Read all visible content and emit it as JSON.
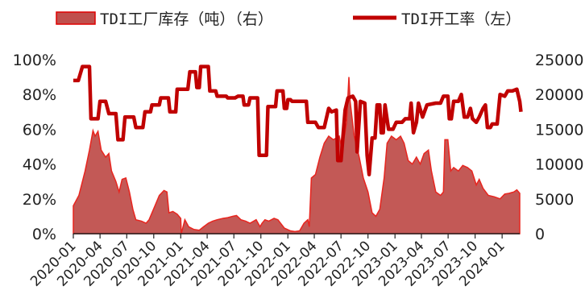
{
  "chart_data": {
    "type": "area+line",
    "legend": {
      "position": "top",
      "entries": [
        {
          "name": "TDI工厂库存（吨）（右）",
          "kind": "area",
          "color": "#c0504d",
          "stroke": "#e00000"
        },
        {
          "name": "TDI开工率（左）",
          "kind": "line",
          "color": "#c00000"
        }
      ]
    },
    "left_axis": {
      "ticks": [
        "100%",
        "80%",
        "60%",
        "40%",
        "20%",
        "0%"
      ],
      "range": [
        0,
        100
      ]
    },
    "right_axis": {
      "ticks": [
        "25000",
        "20000",
        "15000",
        "10000",
        "5000",
        "0"
      ],
      "range": [
        0,
        25000
      ]
    },
    "x_axis": {
      "range": [
        "2020-01",
        "2024-03"
      ],
      "ticks": [
        "2020-01",
        "2020-04",
        "2020-07",
        "2020-10",
        "2021-01",
        "2021-04",
        "2021-07",
        "2021-10",
        "2022-01",
        "2022-04",
        "2022-07",
        "2022-10",
        "2023-01",
        "2023-04",
        "2023-07",
        "2023-10",
        "2024-01"
      ]
    },
    "grid": false,
    "series": [
      {
        "name": "TDI工厂库存（吨）（右）",
        "axis": "right",
        "points": [
          [
            "2020-01-01",
            4000
          ],
          [
            "2020-01-20",
            5500
          ],
          [
            "2020-02-10",
            9000
          ],
          [
            "2020-02-25",
            12000
          ],
          [
            "2020-03-08",
            14800
          ],
          [
            "2020-03-15",
            14000
          ],
          [
            "2020-03-25",
            14700
          ],
          [
            "2020-04-05",
            12000
          ],
          [
            "2020-04-20",
            11000
          ],
          [
            "2020-05-01",
            11500
          ],
          [
            "2020-05-10",
            9000
          ],
          [
            "2020-05-25",
            7500
          ],
          [
            "2020-06-05",
            6000
          ],
          [
            "2020-06-15",
            7800
          ],
          [
            "2020-06-28",
            8000
          ],
          [
            "2020-07-10",
            6000
          ],
          [
            "2020-07-22",
            3500
          ],
          [
            "2020-08-01",
            2000
          ],
          [
            "2020-08-20",
            1800
          ],
          [
            "2020-09-05",
            1500
          ],
          [
            "2020-09-15",
            2000
          ],
          [
            "2020-10-05",
            4000
          ],
          [
            "2020-10-20",
            5500
          ],
          [
            "2020-11-05",
            6200
          ],
          [
            "2020-11-15",
            6000
          ],
          [
            "2020-11-22",
            3000
          ],
          [
            "2020-12-05",
            3200
          ],
          [
            "2020-12-20",
            2800
          ],
          [
            "2021-01-01",
            2200
          ],
          [
            "2021-01-03",
            0
          ],
          [
            "2021-01-15",
            2000
          ],
          [
            "2021-01-28",
            1000
          ],
          [
            "2021-02-15",
            600
          ],
          [
            "2021-03-05",
            500
          ],
          [
            "2021-03-20",
            1000
          ],
          [
            "2021-04-05",
            1500
          ],
          [
            "2021-04-20",
            1800
          ],
          [
            "2021-05-05",
            2000
          ],
          [
            "2021-05-25",
            2200
          ],
          [
            "2021-06-10",
            2300
          ],
          [
            "2021-06-28",
            2500
          ],
          [
            "2021-07-10",
            2600
          ],
          [
            "2021-07-25",
            2000
          ],
          [
            "2021-08-10",
            1800
          ],
          [
            "2021-08-25",
            1500
          ],
          [
            "2021-09-15",
            2000
          ],
          [
            "2021-09-28",
            1000
          ],
          [
            "2021-10-05",
            1500
          ],
          [
            "2021-10-15",
            2000
          ],
          [
            "2021-10-28",
            1800
          ],
          [
            "2021-11-15",
            2200
          ],
          [
            "2021-11-28",
            2000
          ],
          [
            "2021-12-20",
            800
          ],
          [
            "2022-01-10",
            400
          ],
          [
            "2022-01-25",
            300
          ],
          [
            "2022-02-10",
            400
          ],
          [
            "2022-02-25",
            1500
          ],
          [
            "2022-03-10",
            2000
          ],
          [
            "2022-03-15",
            1000
          ],
          [
            "2022-03-22",
            8000
          ],
          [
            "2022-04-05",
            8500
          ],
          [
            "2022-04-20",
            11000
          ],
          [
            "2022-05-05",
            13000
          ],
          [
            "2022-05-20",
            14000
          ],
          [
            "2022-06-05",
            13500
          ],
          [
            "2022-06-25",
            14000
          ],
          [
            "2022-07-05",
            12000
          ],
          [
            "2022-07-20",
            16000
          ],
          [
            "2022-07-28",
            22500
          ],
          [
            "2022-08-01",
            19000
          ],
          [
            "2022-08-15",
            14000
          ],
          [
            "2022-09-01",
            11000
          ],
          [
            "2022-09-15",
            8000
          ],
          [
            "2022-10-01",
            6000
          ],
          [
            "2022-10-15",
            3000
          ],
          [
            "2022-10-28",
            2500
          ],
          [
            "2022-11-10",
            3500
          ],
          [
            "2022-11-25",
            8000
          ],
          [
            "2022-12-05",
            13000
          ],
          [
            "2022-12-20",
            14000
          ],
          [
            "2023-01-05",
            13500
          ],
          [
            "2023-01-20",
            14000
          ],
          [
            "2023-02-01",
            13000
          ],
          [
            "2023-02-15",
            10500
          ],
          [
            "2023-03-01",
            10000
          ],
          [
            "2023-03-15",
            11000
          ],
          [
            "2023-03-28",
            10000
          ],
          [
            "2023-04-10",
            11500
          ],
          [
            "2023-04-25",
            12000
          ],
          [
            "2023-05-05",
            9000
          ],
          [
            "2023-05-20",
            6000
          ],
          [
            "2023-06-05",
            5500
          ],
          [
            "2023-06-15",
            6000
          ],
          [
            "2023-06-20",
            13500
          ],
          [
            "2023-06-30",
            13500
          ],
          [
            "2023-07-10",
            9000
          ],
          [
            "2023-07-20",
            9500
          ],
          [
            "2023-08-05",
            9000
          ],
          [
            "2023-08-20",
            9800
          ],
          [
            "2023-09-05",
            9500
          ],
          [
            "2023-09-20",
            9000
          ],
          [
            "2023-10-05",
            7000
          ],
          [
            "2023-10-15",
            7800
          ],
          [
            "2023-10-28",
            6500
          ],
          [
            "2023-11-15",
            5500
          ],
          [
            "2023-12-05",
            5300
          ],
          [
            "2023-12-25",
            5000
          ],
          [
            "2024-01-10",
            5700
          ],
          [
            "2024-01-25",
            5800
          ],
          [
            "2024-02-10",
            6000
          ],
          [
            "2024-02-20",
            6300
          ],
          [
            "2024-03-01",
            5800
          ]
        ]
      },
      {
        "name": "TDI开工率（左）",
        "axis": "left",
        "points": [
          [
            "2020-01-01",
            88
          ],
          [
            "2020-01-18",
            88
          ],
          [
            "2020-02-01",
            96
          ],
          [
            "2020-02-25",
            96
          ],
          [
            "2020-03-01",
            66
          ],
          [
            "2020-03-25",
            66
          ],
          [
            "2020-04-01",
            76
          ],
          [
            "2020-04-20",
            76
          ],
          [
            "2020-05-01",
            69
          ],
          [
            "2020-05-25",
            69
          ],
          [
            "2020-06-01",
            54
          ],
          [
            "2020-06-18",
            54
          ],
          [
            "2020-06-25",
            67
          ],
          [
            "2020-07-25",
            67
          ],
          [
            "2020-08-01",
            61
          ],
          [
            "2020-08-25",
            61
          ],
          [
            "2020-09-01",
            70
          ],
          [
            "2020-09-20",
            70
          ],
          [
            "2020-09-25",
            74
          ],
          [
            "2020-10-20",
            74
          ],
          [
            "2020-10-25",
            78
          ],
          [
            "2020-11-20",
            78
          ],
          [
            "2020-11-25",
            70
          ],
          [
            "2020-12-15",
            70
          ],
          [
            "2020-12-20",
            83
          ],
          [
            "2021-01-25",
            83
          ],
          [
            "2021-02-01",
            93
          ],
          [
            "2021-02-20",
            93
          ],
          [
            "2021-02-25",
            84
          ],
          [
            "2021-03-05",
            84
          ],
          [
            "2021-03-10",
            96
          ],
          [
            "2021-04-05",
            96
          ],
          [
            "2021-04-10",
            82
          ],
          [
            "2021-04-30",
            82
          ],
          [
            "2021-05-05",
            79
          ],
          [
            "2021-06-05",
            79
          ],
          [
            "2021-06-10",
            78
          ],
          [
            "2021-07-05",
            78
          ],
          [
            "2021-07-15",
            79
          ],
          [
            "2021-08-01",
            79
          ],
          [
            "2021-08-05",
            74
          ],
          [
            "2021-08-20",
            74
          ],
          [
            "2021-08-25",
            78
          ],
          [
            "2021-09-20",
            78
          ],
          [
            "2021-09-25",
            45
          ],
          [
            "2021-10-20",
            45
          ],
          [
            "2021-10-25",
            73
          ],
          [
            "2021-11-20",
            73
          ],
          [
            "2021-11-25",
            82
          ],
          [
            "2021-12-15",
            82
          ],
          [
            "2021-12-20",
            72
          ],
          [
            "2021-12-28",
            72
          ],
          [
            "2022-01-01",
            77
          ],
          [
            "2022-01-10",
            77
          ],
          [
            "2022-01-15",
            76
          ],
          [
            "2022-03-05",
            76
          ],
          [
            "2022-03-10",
            64
          ],
          [
            "2022-04-05",
            64
          ],
          [
            "2022-04-15",
            61
          ],
          [
            "2022-05-05",
            61
          ],
          [
            "2022-05-20",
            72
          ],
          [
            "2022-05-30",
            70
          ],
          [
            "2022-06-15",
            71
          ],
          [
            "2022-06-20",
            42
          ],
          [
            "2022-07-01",
            42
          ],
          [
            "2022-07-15",
            71
          ],
          [
            "2022-07-25",
            78
          ],
          [
            "2022-08-10",
            79
          ],
          [
            "2022-08-20",
            76
          ],
          [
            "2022-08-25",
            47
          ],
          [
            "2022-09-05",
            76
          ],
          [
            "2022-09-20",
            75
          ],
          [
            "2022-09-28",
            45
          ],
          [
            "2022-10-05",
            34
          ],
          [
            "2022-10-15",
            55
          ],
          [
            "2022-10-25",
            55
          ],
          [
            "2022-11-01",
            74
          ],
          [
            "2022-11-10",
            74
          ],
          [
            "2022-11-15",
            58
          ],
          [
            "2022-11-22",
            58
          ],
          [
            "2022-11-28",
            74
          ],
          [
            "2022-12-10",
            60
          ],
          [
            "2022-12-25",
            60
          ],
          [
            "2023-01-05",
            64
          ],
          [
            "2023-01-25",
            64
          ],
          [
            "2023-02-05",
            66
          ],
          [
            "2023-02-20",
            66
          ],
          [
            "2023-02-25",
            75
          ],
          [
            "2023-03-05",
            58
          ],
          [
            "2023-03-15",
            64
          ],
          [
            "2023-03-22",
            75
          ],
          [
            "2023-04-05",
            67
          ],
          [
            "2023-04-20",
            74
          ],
          [
            "2023-05-20",
            75
          ],
          [
            "2023-06-05",
            75
          ],
          [
            "2023-06-15",
            79
          ],
          [
            "2023-06-30",
            79
          ],
          [
            "2023-07-05",
            66
          ],
          [
            "2023-07-12",
            66
          ],
          [
            "2023-07-20",
            76
          ],
          [
            "2023-08-05",
            76
          ],
          [
            "2023-08-15",
            80
          ],
          [
            "2023-08-25",
            67
          ],
          [
            "2023-09-05",
            67
          ],
          [
            "2023-09-15",
            72
          ],
          [
            "2023-09-22",
            66
          ],
          [
            "2023-10-05",
            64
          ],
          [
            "2023-10-15",
            67
          ],
          [
            "2023-10-28",
            72
          ],
          [
            "2023-11-05",
            74
          ],
          [
            "2023-11-12",
            61
          ],
          [
            "2023-11-22",
            61
          ],
          [
            "2023-11-28",
            63
          ],
          [
            "2023-12-15",
            63
          ],
          [
            "2023-12-25",
            80
          ],
          [
            "2024-01-10",
            79
          ],
          [
            "2024-01-20",
            82
          ],
          [
            "2024-02-05",
            82
          ],
          [
            "2024-02-20",
            83
          ],
          [
            "2024-03-01",
            76
          ],
          [
            "2024-03-05",
            70
          ]
        ]
      }
    ]
  }
}
